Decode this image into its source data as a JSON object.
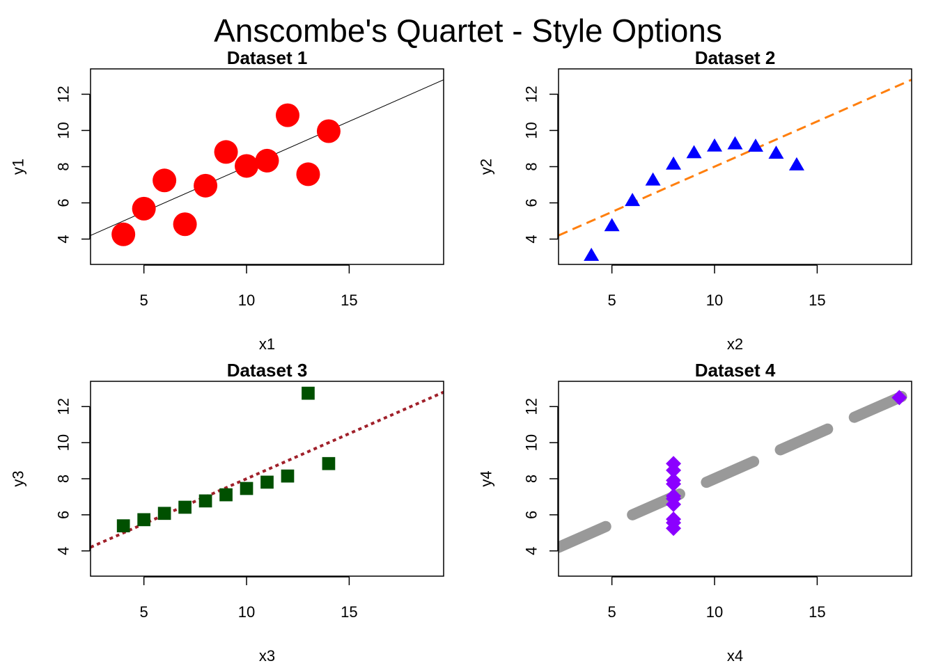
{
  "figure": {
    "title": "Anscombe's Quartet - Style Options"
  },
  "chart_data": [
    {
      "type": "scatter",
      "title": "Dataset 1",
      "xlabel": "x1",
      "ylabel": "y1",
      "xlim": [
        2.4,
        19.6
      ],
      "ylim": [
        2.6,
        13.4
      ],
      "xticks": [
        5,
        10,
        15
      ],
      "yticks": [
        4,
        6,
        8,
        10,
        12
      ],
      "grid": false,
      "x": [
        10,
        8,
        13,
        9,
        11,
        14,
        6,
        4,
        12,
        7,
        5
      ],
      "y": [
        8.04,
        6.95,
        7.58,
        8.81,
        8.33,
        9.96,
        7.24,
        4.26,
        10.84,
        4.82,
        5.68
      ],
      "marker": {
        "shape": "circle",
        "color": "#ff0000",
        "size": "large"
      },
      "fit": {
        "intercept": 3.0,
        "slope": 0.5,
        "color": "#000000",
        "style": "solid",
        "width": 1
      }
    },
    {
      "type": "scatter",
      "title": "Dataset 2",
      "xlabel": "x2",
      "ylabel": "y2",
      "xlim": [
        2.4,
        19.6
      ],
      "ylim": [
        2.6,
        13.4
      ],
      "xticks": [
        5,
        10,
        15
      ],
      "yticks": [
        4,
        6,
        8,
        10,
        12
      ],
      "grid": false,
      "x": [
        10,
        8,
        13,
        9,
        11,
        14,
        6,
        4,
        12,
        7,
        5
      ],
      "y": [
        9.14,
        8.14,
        8.74,
        8.77,
        9.26,
        8.1,
        6.13,
        3.1,
        9.13,
        7.26,
        4.74
      ],
      "marker": {
        "shape": "triangle",
        "color": "#0000ff",
        "size": "medium"
      },
      "fit": {
        "intercept": 3.0,
        "slope": 0.5,
        "color": "#ff7f0e",
        "style": "dashed",
        "width": 3
      }
    },
    {
      "type": "scatter",
      "title": "Dataset 3",
      "xlabel": "x3",
      "ylabel": "y3",
      "xlim": [
        2.4,
        19.6
      ],
      "ylim": [
        2.6,
        13.4
      ],
      "xticks": [
        5,
        10,
        15
      ],
      "yticks": [
        4,
        6,
        8,
        10,
        12
      ],
      "grid": false,
      "x": [
        10,
        8,
        13,
        9,
        11,
        14,
        6,
        4,
        12,
        7,
        5
      ],
      "y": [
        7.46,
        6.77,
        12.74,
        7.11,
        7.81,
        8.84,
        6.08,
        5.39,
        8.15,
        6.42,
        5.73
      ],
      "marker": {
        "shape": "square",
        "color": "#005000",
        "size": "medium"
      },
      "fit": {
        "intercept": 3.0,
        "slope": 0.5,
        "color": "#a0202a",
        "style": "dotted",
        "width": 4
      }
    },
    {
      "type": "scatter",
      "title": "Dataset 4",
      "xlabel": "x4",
      "ylabel": "y4",
      "xlim": [
        2.4,
        19.6
      ],
      "ylim": [
        2.6,
        13.4
      ],
      "xticks": [
        5,
        10,
        15
      ],
      "yticks": [
        4,
        6,
        8,
        10,
        12
      ],
      "grid": false,
      "x": [
        8,
        8,
        8,
        8,
        8,
        8,
        8,
        19,
        8,
        8,
        8
      ],
      "y": [
        6.58,
        5.76,
        7.71,
        8.84,
        8.47,
        7.04,
        5.25,
        12.5,
        5.56,
        7.91,
        6.89
      ],
      "marker": {
        "shape": "diamond",
        "color": "#8b00ff",
        "size": "medium"
      },
      "fit": {
        "intercept": 3.0,
        "slope": 0.5,
        "color": "#999999",
        "style": "longdash",
        "width": 16
      }
    }
  ]
}
